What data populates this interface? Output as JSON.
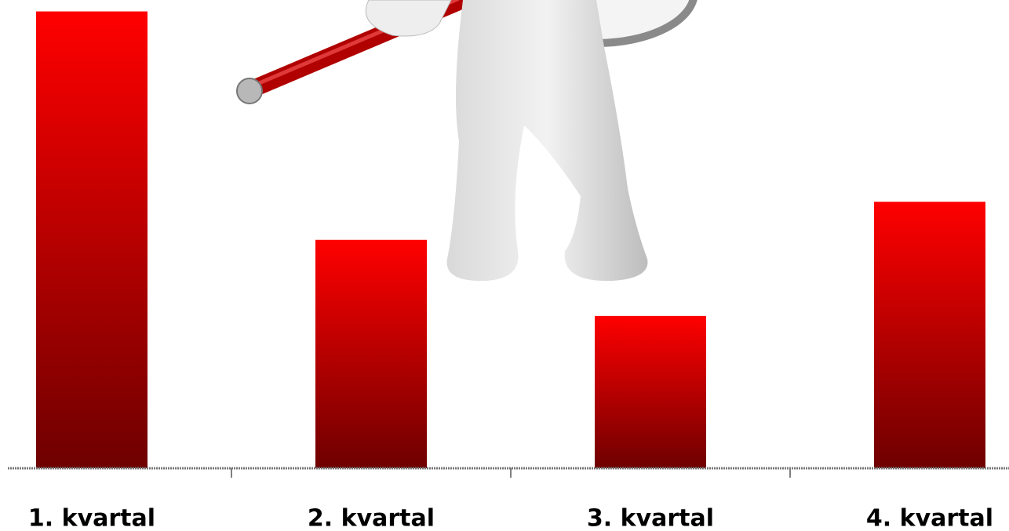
{
  "chart_data": {
    "type": "bar",
    "categories": [
      "1. kvartal",
      "2. kvartal",
      "3. kvartal",
      "4. kvartal"
    ],
    "values": [
      6.0,
      3.0,
      2.0,
      3.5
    ],
    "gradient": [
      "#ff0000",
      "#6e0000"
    ],
    "ylim": [
      0,
      6.15
    ]
  }
}
